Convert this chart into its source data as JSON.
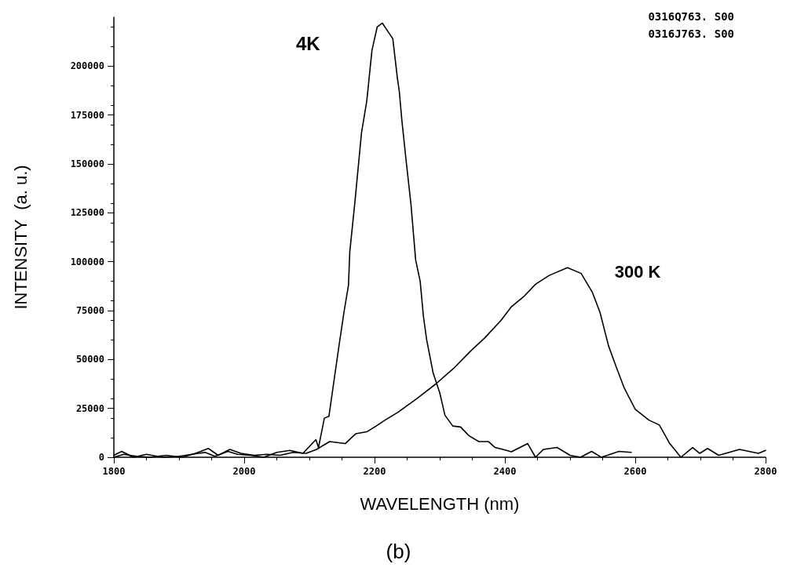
{
  "chart_data": {
    "type": "line",
    "xlabel": "WAVELENGTH (nm)",
    "ylabel": "INTENSITY  (a. u.)",
    "annotations": [
      "0316Q763. S00",
      "0316J763. S00",
      "(b)"
    ],
    "xlim": [
      1800,
      2800
    ],
    "xticks": [
      1800,
      2000,
      2200,
      2400,
      2600,
      2800
    ],
    "ylim": [
      0,
      225000
    ],
    "yticks": [
      0,
      25000,
      50000,
      75000,
      100000,
      125000,
      150000,
      175000,
      200000
    ],
    "grid": false,
    "marker": "none",
    "line_style": "solid",
    "series": [
      {
        "name": "4K",
        "color": "#000000",
        "x": [
          1800,
          1812,
          1830,
          1850,
          1875,
          1900,
          1920,
          1940,
          1955,
          1975,
          1990,
          2010,
          2030,
          2050,
          2070,
          2090,
          2110,
          2114,
          2123,
          2130,
          2145,
          2153,
          2160,
          2162,
          2170,
          2180,
          2188,
          2196,
          2204,
          2212,
          2228,
          2235,
          2238,
          2242,
          2249,
          2256,
          2263,
          2270,
          2275,
          2280,
          2290,
          2300,
          2308,
          2320,
          2332,
          2345,
          2360,
          2375,
          2385,
          2397,
          2410,
          2435,
          2447,
          2459,
          2480,
          2500,
          2516,
          2533,
          2548,
          2575,
          2594
        ],
        "values": [
          1000,
          3000,
          0,
          1500,
          0,
          500,
          1500,
          2500,
          500,
          3000,
          1500,
          1000,
          0,
          2500,
          3500,
          2000,
          9000,
          5000,
          20000,
          21000,
          56000,
          74000,
          88000,
          105000,
          131000,
          166000,
          182000,
          208000,
          220000,
          222000,
          214000,
          194000,
          187000,
          172000,
          150000,
          129000,
          101000,
          90000,
          72000,
          60000,
          43000,
          33000,
          21500,
          16000,
          15500,
          11000,
          8000,
          8000,
          5000,
          4000,
          2800,
          7000,
          0,
          4000,
          5000,
          1000,
          0,
          3000,
          0,
          3000,
          2500
        ]
      },
      {
        "name": "300 K",
        "color": "#000000",
        "x": [
          1800,
          1815,
          1835,
          1855,
          1880,
          1905,
          1925,
          1945,
          1960,
          1978,
          1995,
          2015,
          2035,
          2055,
          2075,
          2095,
          2111,
          2131,
          2155,
          2171,
          2188,
          2204,
          2216,
          2236,
          2265,
          2294,
          2323,
          2348,
          2369,
          2394,
          2410,
          2430,
          2447,
          2468,
          2496,
          2517,
          2534,
          2546,
          2559,
          2571,
          2583,
          2600,
          2621,
          2637,
          2653,
          2670,
          2688,
          2699,
          2711,
          2728,
          2760,
          2789,
          2800
        ],
        "values": [
          0,
          1500,
          500,
          0,
          1000,
          0,
          2000,
          4500,
          1000,
          4000,
          2000,
          1000,
          1500,
          1000,
          2500,
          2000,
          4000,
          8000,
          7000,
          12000,
          13000,
          16300,
          19000,
          23000,
          30000,
          37500,
          46000,
          54500,
          61000,
          70000,
          77000,
          82500,
          88500,
          93000,
          97000,
          94000,
          84500,
          74000,
          57000,
          46000,
          35500,
          24500,
          19000,
          16500,
          7000,
          0,
          5000,
          2000,
          4500,
          1000,
          4000,
          2000,
          3500
        ]
      }
    ]
  }
}
